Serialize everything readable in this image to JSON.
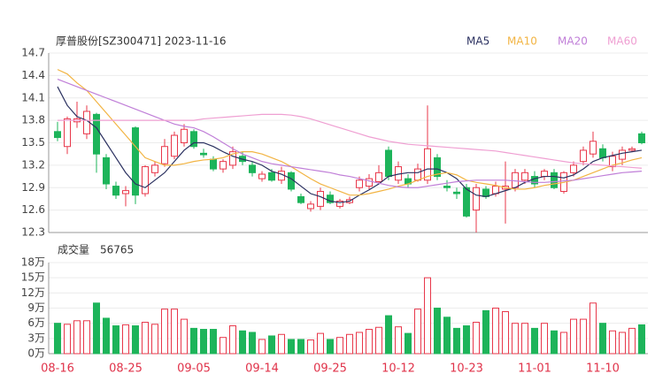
{
  "chart_data": [
    {
      "type": "candlestick",
      "title": "厚普股份[SZ300471] 2023-11-16",
      "up_color": "#e8374a",
      "down_color": "#1db45a",
      "ylim": [
        12.3,
        14.7
      ],
      "yticks": [
        12.3,
        12.6,
        12.9,
        13.2,
        13.5,
        13.8,
        14.1,
        14.4,
        14.7
      ],
      "grid": true,
      "open": [
        13.65,
        13.45,
        13.78,
        13.62,
        13.88,
        13.3,
        12.92,
        12.82,
        13.7,
        12.82,
        13.1,
        13.22,
        13.32,
        13.5,
        13.65,
        13.36,
        13.28,
        13.15,
        13.2,
        13.32,
        13.2,
        13.02,
        13.1,
        13.0,
        13.1,
        12.78,
        12.62,
        12.65,
        12.8,
        12.65,
        12.7,
        12.9,
        12.92,
        12.98,
        13.4,
        13.0,
        13.02,
        13.0,
        13.0,
        13.3,
        12.92,
        12.84,
        12.9,
        12.6,
        12.88,
        12.82,
        12.88,
        12.9,
        13.0,
        13.05,
        13.05,
        13.1,
        12.85,
        13.1,
        13.25,
        13.35,
        13.42,
        13.18,
        13.28,
        13.4,
        13.62
      ],
      "high": [
        13.78,
        13.85,
        14.05,
        14.0,
        13.9,
        13.35,
        12.98,
        12.92,
        13.72,
        13.2,
        13.25,
        13.55,
        13.65,
        13.75,
        13.68,
        13.42,
        13.32,
        13.28,
        13.45,
        13.38,
        13.25,
        13.12,
        13.15,
        13.18,
        13.12,
        12.82,
        12.72,
        12.9,
        12.85,
        12.75,
        12.78,
        13.05,
        13.08,
        13.2,
        13.45,
        13.25,
        13.08,
        13.22,
        14.0,
        13.35,
        13.0,
        12.9,
        12.95,
        12.95,
        12.92,
        12.98,
        13.25,
        13.15,
        13.15,
        13.12,
        13.15,
        13.15,
        13.12,
        13.25,
        13.45,
        13.65,
        13.48,
        13.38,
        13.45,
        13.45,
        13.65
      ],
      "low": [
        13.52,
        13.35,
        13.7,
        13.55,
        13.1,
        12.88,
        12.75,
        12.65,
        12.68,
        12.78,
        13.05,
        13.18,
        13.28,
        13.45,
        13.42,
        13.3,
        13.12,
        13.1,
        13.15,
        13.2,
        13.05,
        12.98,
        12.98,
        12.95,
        12.85,
        12.68,
        12.58,
        12.6,
        12.68,
        12.62,
        12.68,
        12.85,
        12.88,
        12.95,
        13.0,
        12.95,
        12.9,
        12.98,
        12.95,
        13.0,
        12.85,
        12.75,
        12.5,
        12.3,
        12.75,
        12.78,
        12.42,
        12.85,
        12.95,
        12.9,
        13.0,
        12.88,
        12.82,
        13.05,
        13.2,
        13.3,
        13.25,
        13.12,
        13.2,
        13.38,
        13.48
      ],
      "close": [
        13.57,
        13.82,
        13.82,
        13.92,
        13.35,
        12.95,
        12.8,
        12.86,
        12.8,
        13.18,
        13.2,
        13.45,
        13.6,
        13.68,
        13.45,
        13.34,
        13.15,
        13.25,
        13.38,
        13.25,
        13.1,
        13.08,
        13.0,
        13.12,
        12.88,
        12.7,
        12.68,
        12.85,
        12.7,
        12.72,
        12.74,
        13.0,
        13.02,
        13.1,
        13.05,
        13.18,
        12.95,
        13.15,
        13.42,
        13.05,
        12.9,
        12.82,
        12.52,
        12.9,
        12.78,
        12.92,
        12.92,
        13.1,
        13.1,
        12.95,
        13.12,
        12.9,
        13.1,
        13.2,
        13.4,
        13.52,
        13.3,
        13.32,
        13.4,
        13.42,
        13.5
      ],
      "series": [
        {
          "name": "MA5",
          "color": "#2b3160",
          "values": [
            14.25,
            14.0,
            13.85,
            13.8,
            13.7,
            13.5,
            13.3,
            13.1,
            12.95,
            12.9,
            13.0,
            13.1,
            13.25,
            13.4,
            13.5,
            13.5,
            13.45,
            13.38,
            13.32,
            13.28,
            13.25,
            13.2,
            13.12,
            13.08,
            13.02,
            12.92,
            12.82,
            12.78,
            12.72,
            12.7,
            12.72,
            12.8,
            12.87,
            12.95,
            13.05,
            13.08,
            13.1,
            13.1,
            13.15,
            13.15,
            13.1,
            13.02,
            12.88,
            12.8,
            12.78,
            12.82,
            12.86,
            12.9,
            12.97,
            13.02,
            13.05,
            13.05,
            13.03,
            13.07,
            13.15,
            13.25,
            13.3,
            13.33,
            13.36,
            13.38,
            13.4
          ]
        },
        {
          "name": "MA10",
          "color": "#f2b443",
          "values": [
            14.48,
            14.42,
            14.3,
            14.2,
            14.05,
            13.9,
            13.75,
            13.6,
            13.45,
            13.3,
            13.25,
            13.2,
            13.2,
            13.22,
            13.25,
            13.27,
            13.28,
            13.3,
            13.35,
            13.38,
            13.38,
            13.35,
            13.3,
            13.25,
            13.18,
            13.1,
            13.02,
            12.95,
            12.9,
            12.85,
            12.8,
            12.8,
            12.82,
            12.85,
            12.88,
            12.92,
            12.95,
            13.0,
            13.05,
            13.08,
            13.1,
            13.07,
            13.0,
            12.97,
            12.95,
            12.93,
            12.9,
            12.88,
            12.88,
            12.9,
            12.93,
            12.95,
            12.97,
            13.0,
            13.05,
            13.1,
            13.15,
            13.2,
            13.23,
            13.27,
            13.3
          ]
        },
        {
          "name": "MA20",
          "color": "#c07fd8",
          "values": [
            14.35,
            14.3,
            14.25,
            14.2,
            14.15,
            14.1,
            14.05,
            14.0,
            13.95,
            13.9,
            13.85,
            13.8,
            13.75,
            13.72,
            13.7,
            13.65,
            13.58,
            13.5,
            13.42,
            13.35,
            13.3,
            13.25,
            13.22,
            13.2,
            13.18,
            13.16,
            13.14,
            13.12,
            13.1,
            13.07,
            13.05,
            13.02,
            12.99,
            12.96,
            12.93,
            12.91,
            12.9,
            12.9,
            12.92,
            12.94,
            12.96,
            12.98,
            12.99,
            13.0,
            13.0,
            13.0,
            13.0,
            12.99,
            12.98,
            12.97,
            12.97,
            12.98,
            12.99,
            13.0,
            13.02,
            13.04,
            13.06,
            13.08,
            13.1,
            13.11,
            13.12
          ]
        },
        {
          "name": "MA60",
          "color": "#ef9fd2",
          "values": [
            13.8,
            13.8,
            13.8,
            13.8,
            13.8,
            13.8,
            13.8,
            13.8,
            13.8,
            13.8,
            13.8,
            13.8,
            13.8,
            13.8,
            13.8,
            13.82,
            13.83,
            13.84,
            13.85,
            13.86,
            13.87,
            13.88,
            13.88,
            13.88,
            13.87,
            13.85,
            13.82,
            13.78,
            13.74,
            13.7,
            13.66,
            13.62,
            13.58,
            13.55,
            13.52,
            13.5,
            13.48,
            13.47,
            13.46,
            13.45,
            13.44,
            13.43,
            13.42,
            13.41,
            13.4,
            13.39,
            13.37,
            13.35,
            13.33,
            13.31,
            13.29,
            13.27,
            13.25,
            13.23,
            13.22,
            13.21,
            13.2,
            13.19,
            13.18,
            13.17,
            13.16
          ]
        }
      ]
    },
    {
      "type": "volume",
      "title": "成交量",
      "latest": 56765,
      "categories": [
        "08-16",
        null,
        null,
        null,
        null,
        null,
        null,
        "08-25",
        null,
        null,
        null,
        null,
        null,
        null,
        "09-05",
        null,
        null,
        null,
        null,
        null,
        null,
        "09-14",
        null,
        null,
        null,
        null,
        null,
        null,
        "09-25",
        null,
        null,
        null,
        null,
        null,
        null,
        "10-12",
        null,
        null,
        null,
        null,
        null,
        null,
        "10-23",
        null,
        null,
        null,
        null,
        null,
        null,
        "11-01",
        null,
        null,
        null,
        null,
        null,
        null,
        "11-10",
        null,
        null,
        null,
        null
      ],
      "values": [
        6,
        5.8,
        6.5,
        6.5,
        10,
        7,
        5.5,
        5.7,
        5.5,
        6.2,
        5.8,
        8.8,
        8.8,
        6.8,
        5,
        4.8,
        4.8,
        3.2,
        5.5,
        4.5,
        4.2,
        2.8,
        3.5,
        3.8,
        2.8,
        2.8,
        2.7,
        4,
        2.8,
        3.2,
        3.8,
        4.2,
        4.8,
        5.2,
        7.5,
        5.3,
        4,
        8.8,
        15,
        9,
        7.2,
        5,
        5.5,
        6.2,
        8.5,
        9,
        8.3,
        6,
        6,
        5,
        6,
        4.5,
        4.2,
        6.8,
        6.8,
        10,
        6,
        4.5,
        4.2,
        5,
        5.7
      ],
      "ylim": [
        0,
        18
      ],
      "yticks": [
        {
          "value": 0,
          "label": "0万"
        },
        {
          "value": 3,
          "label": "3万"
        },
        {
          "value": 6,
          "label": "6万"
        },
        {
          "value": 9,
          "label": "9万"
        },
        {
          "value": 12,
          "label": "12万"
        },
        {
          "value": 15,
          "label": "15万"
        },
        {
          "value": 18,
          "label": "18万"
        }
      ],
      "grid": true
    }
  ]
}
